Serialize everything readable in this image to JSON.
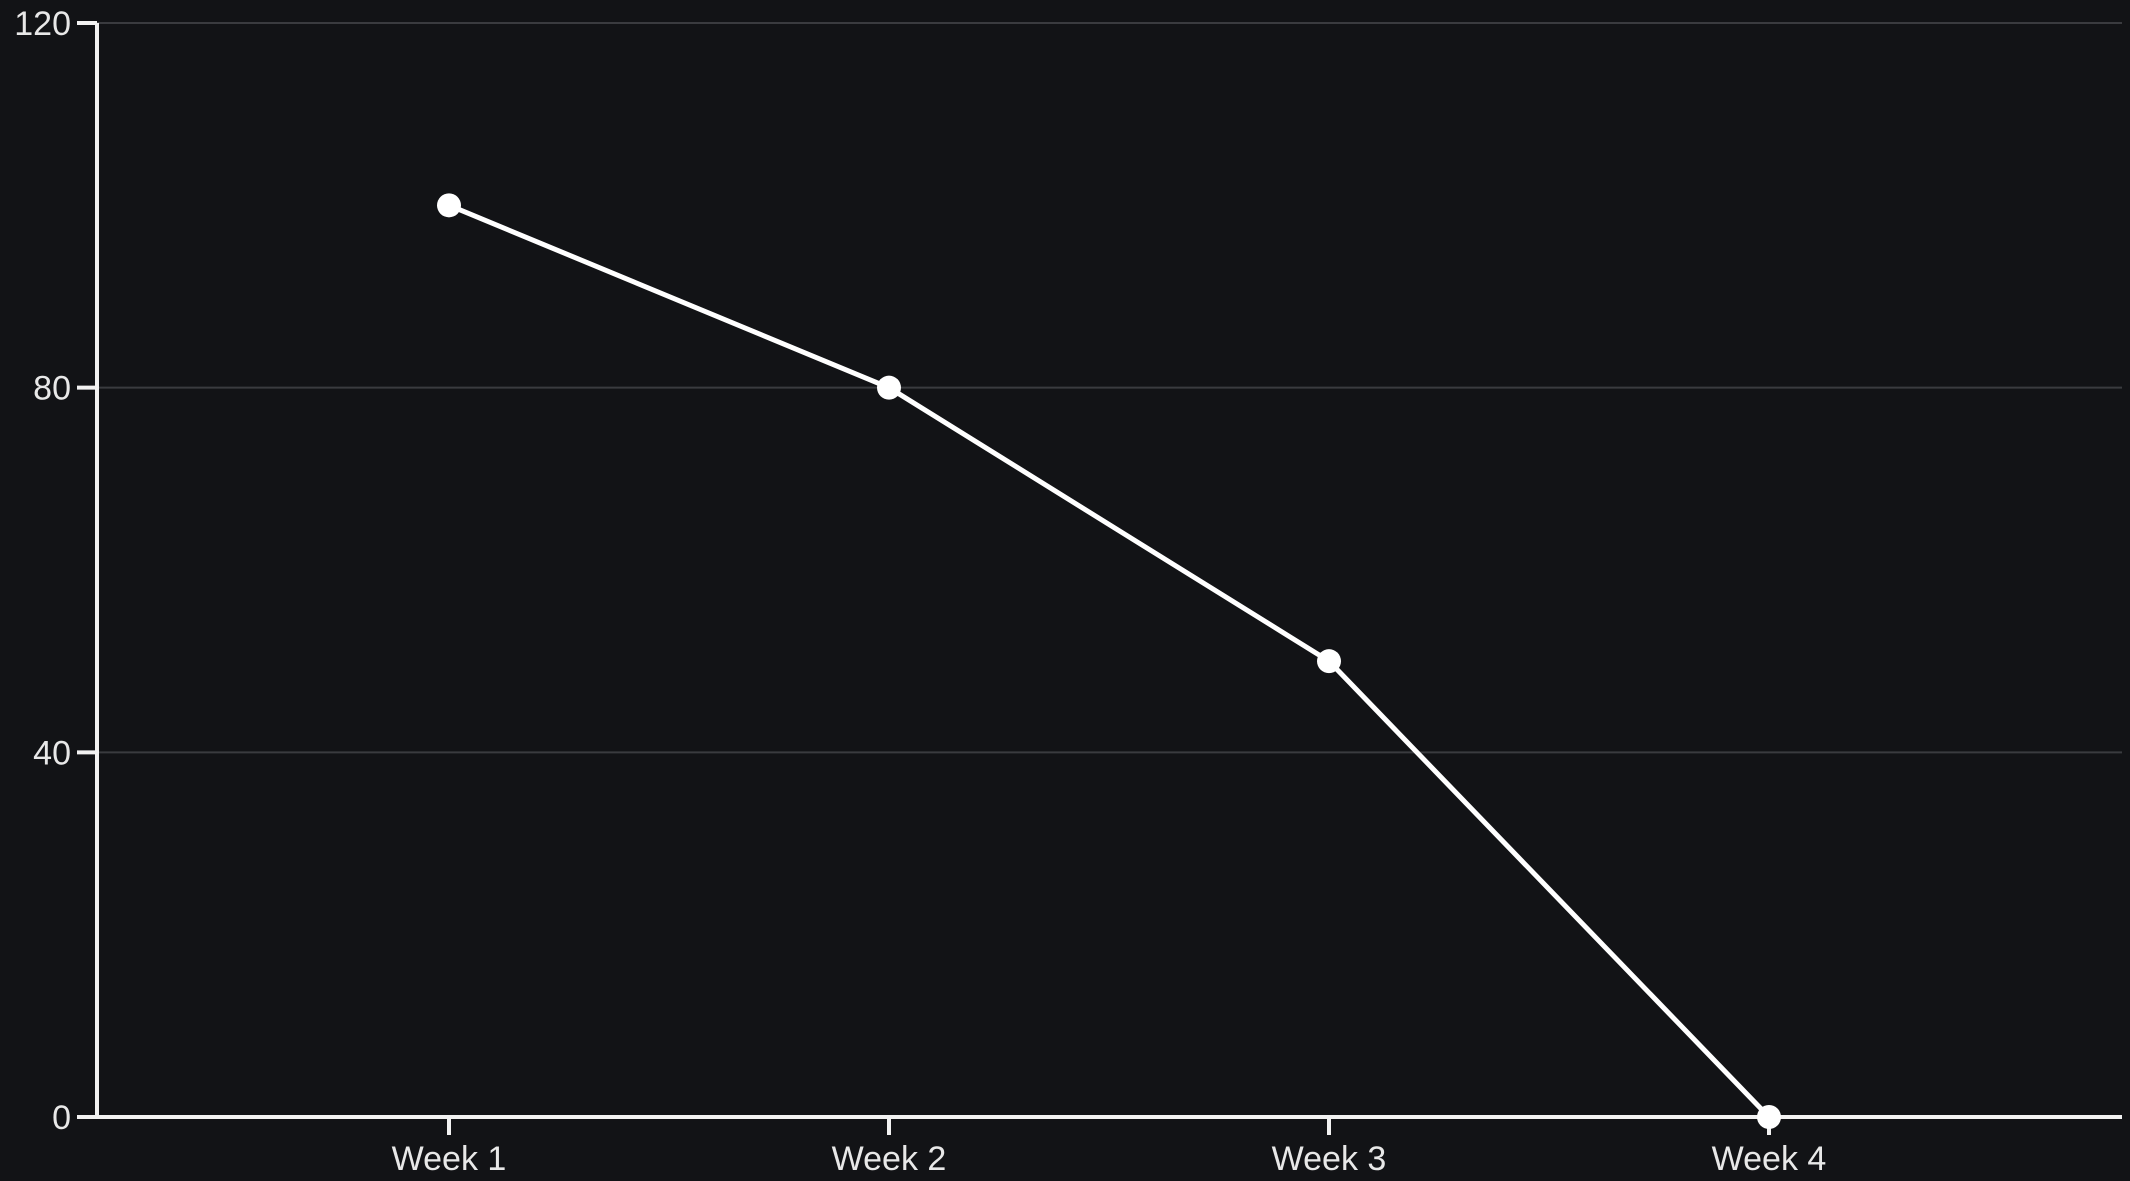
{
  "colors": {
    "background": "#121316",
    "axis": "#f2f2f2",
    "grid": "#3a3b3f",
    "line": "#ffffff",
    "marker": "#ffffff",
    "text": "#e8e8e8"
  },
  "chart_data": {
    "type": "line",
    "title": "",
    "xlabel": "",
    "ylabel": "",
    "categories": [
      "Week 1",
      "Week 2",
      "Week 3",
      "Week 4"
    ],
    "series": [
      {
        "values": [
          100,
          80,
          50,
          0
        ]
      }
    ],
    "ylim": [
      0,
      120
    ],
    "yticks": [
      0,
      40,
      80,
      120
    ],
    "grid": "horizontal",
    "legend": "none",
    "markers": true
  }
}
